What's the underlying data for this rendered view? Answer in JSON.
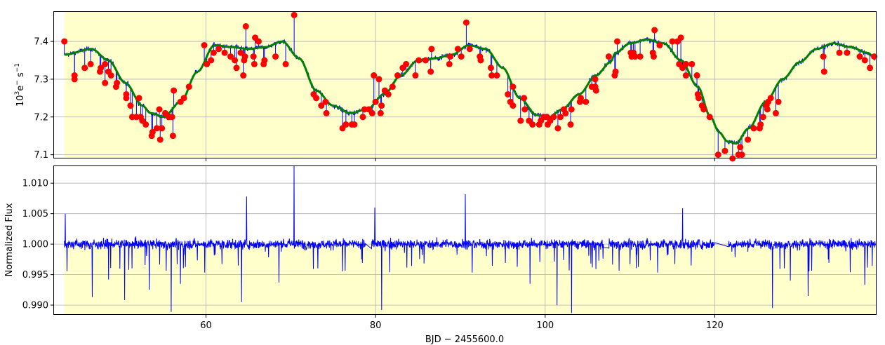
{
  "chart_data": [
    {
      "type": "line",
      "panel": "top",
      "ylabel_base": "10",
      "ylabel_exp": "3",
      "ylabel_mid": "e",
      "ylabel_minus": "−",
      "ylabel_s": " s",
      "ylabel_exp2": "−1",
      "xlim": [
        42,
        139
      ],
      "ylim": [
        7.09,
        7.48
      ],
      "grid": true,
      "x_ticks": [
        60,
        80,
        100,
        120
      ],
      "y_ticks": [
        {
          "value": 7.1,
          "label": "7.1"
        },
        {
          "value": 7.2,
          "label": "7.2"
        },
        {
          "value": 7.3,
          "label": "7.3"
        },
        {
          "value": 7.4,
          "label": "7.4"
        }
      ],
      "fill_color": "#ffffcc",
      "series": [
        {
          "role": "raw",
          "color": "#0000ff",
          "model_knots": {
            "x": [
              43.3,
              46.5,
              48.5,
              50.5,
              52.5,
              53.5,
              55.0,
              57.0,
              59.0,
              61.0,
              63.0,
              65.0,
              67.0,
              69.0,
              71.0,
              73.0,
              75.0,
              77.0,
              79.0,
              81.0,
              83.0,
              85.0,
              87.0,
              89.0,
              91.0,
              93.0,
              95.0,
              97.0,
              99.0,
              100.5,
              102.0,
              104.0,
              106.0,
              107.7,
              108.3,
              110.0,
              112.0,
              114.0,
              116.0,
              118.0,
              119.5,
              120.5,
              121.5,
              122.5,
              124.0,
              126.0,
              128.0,
              130.0,
              132.0,
              134.0,
              136.0,
              138.0,
              139.0
            ],
            "y": [
              7.365,
              7.38,
              7.35,
              7.29,
              7.23,
              7.21,
              7.2,
              7.24,
              7.32,
              7.39,
              7.385,
              7.38,
              7.385,
              7.4,
              7.355,
              7.27,
              7.23,
              7.21,
              7.22,
              7.26,
              7.31,
              7.35,
              7.355,
              7.365,
              7.39,
              7.38,
              7.33,
              7.25,
              7.205,
              7.2,
              7.22,
              7.26,
              7.31,
              7.345,
              7.37,
              7.395,
              7.405,
              7.395,
              7.35,
              7.28,
              7.2,
              7.16,
              7.135,
              7.13,
              7.17,
              7.24,
              7.3,
              7.345,
              7.38,
              7.395,
              7.385,
              7.37,
              7.355
            ]
          },
          "gap": [
            120.0,
            121.6
          ]
        },
        {
          "role": "trend",
          "color": "#008000"
        },
        {
          "role": "outliers",
          "color": "#ff0000",
          "points": [
            [
              43.3,
              7.4
            ],
            [
              44.5,
              7.31
            ],
            [
              44.5,
              7.3
            ],
            [
              45.7,
              7.33
            ],
            [
              46.4,
              7.34
            ],
            [
              47.5,
              7.32
            ],
            [
              47.6,
              7.33
            ],
            [
              48.1,
              7.34
            ],
            [
              48.1,
              7.29
            ],
            [
              48.5,
              7.32
            ],
            [
              48.8,
              7.31
            ],
            [
              49.4,
              7.28
            ],
            [
              49.5,
              7.29
            ],
            [
              50.6,
              7.26
            ],
            [
              50.6,
              7.25
            ],
            [
              51.1,
              7.23
            ],
            [
              51.3,
              7.2
            ],
            [
              51.8,
              7.2
            ],
            [
              52.1,
              7.25
            ],
            [
              52.3,
              7.2
            ],
            [
              52.5,
              7.19
            ],
            [
              52.9,
              7.18
            ],
            [
              53.6,
              7.15
            ],
            [
              53.7,
              7.16
            ],
            [
              54.2,
              7.17
            ],
            [
              54.5,
              7.22
            ],
            [
              54.6,
              7.14
            ],
            [
              54.8,
              7.17
            ],
            [
              55.2,
              7.21
            ],
            [
              55.6,
              7.2
            ],
            [
              56.0,
              7.2
            ],
            [
              56.1,
              7.15
            ],
            [
              56.2,
              7.27
            ],
            [
              57.0,
              7.24
            ],
            [
              57.4,
              7.25
            ],
            [
              58.0,
              7.28
            ],
            [
              59.8,
              7.39
            ],
            [
              60.1,
              7.34
            ],
            [
              60.6,
              7.35
            ],
            [
              60.9,
              7.37
            ],
            [
              61.5,
              7.38
            ],
            [
              62.2,
              7.37
            ],
            [
              62.9,
              7.36
            ],
            [
              63.4,
              7.35
            ],
            [
              63.6,
              7.33
            ],
            [
              64.1,
              7.37
            ],
            [
              64.4,
              7.31
            ],
            [
              64.5,
              7.35
            ],
            [
              64.6,
              7.36
            ],
            [
              64.7,
              7.44
            ],
            [
              65.6,
              7.36
            ],
            [
              65.7,
              7.34
            ],
            [
              65.8,
              7.41
            ],
            [
              66.2,
              7.4
            ],
            [
              66.8,
              7.34
            ],
            [
              66.9,
              7.35
            ],
            [
              68.2,
              7.36
            ],
            [
              69.4,
              7.34
            ],
            [
              70.4,
              7.47
            ],
            [
              72.7,
              7.26
            ],
            [
              73.0,
              7.25
            ],
            [
              73.6,
              7.23
            ],
            [
              74.1,
              7.24
            ],
            [
              74.2,
              7.21
            ],
            [
              76.1,
              7.17
            ],
            [
              76.5,
              7.18
            ],
            [
              77.2,
              7.18
            ],
            [
              77.5,
              7.18
            ],
            [
              78.5,
              7.2
            ],
            [
              78.7,
              7.22
            ],
            [
              79.2,
              7.22
            ],
            [
              79.6,
              7.21
            ],
            [
              79.8,
              7.31
            ],
            [
              80.0,
              7.24
            ],
            [
              80.4,
              7.3
            ],
            [
              80.6,
              7.21
            ],
            [
              80.7,
              7.23
            ],
            [
              81.1,
              7.27
            ],
            [
              81.5,
              7.26
            ],
            [
              82.0,
              7.28
            ],
            [
              82.6,
              7.31
            ],
            [
              83.2,
              7.33
            ],
            [
              83.6,
              7.34
            ],
            [
              84.7,
              7.31
            ],
            [
              85.1,
              7.35
            ],
            [
              85.9,
              7.35
            ],
            [
              86.5,
              7.32
            ],
            [
              86.6,
              7.38
            ],
            [
              88.7,
              7.34
            ],
            [
              88.8,
              7.36
            ],
            [
              89.7,
              7.38
            ],
            [
              90.1,
              7.36
            ],
            [
              90.7,
              7.45
            ],
            [
              91.1,
              7.38
            ],
            [
              92.3,
              7.36
            ],
            [
              92.4,
              7.35
            ],
            [
              93.6,
              7.33
            ],
            [
              93.7,
              7.31
            ],
            [
              94.3,
              7.31
            ],
            [
              95.6,
              7.26
            ],
            [
              95.9,
              7.24
            ],
            [
              96.2,
              7.28
            ],
            [
              96.2,
              7.23
            ],
            [
              97.1,
              7.19
            ],
            [
              97.5,
              7.25
            ],
            [
              97.6,
              7.22
            ],
            [
              98.1,
              7.19
            ],
            [
              98.5,
              7.18
            ],
            [
              99.3,
              7.18
            ],
            [
              99.5,
              7.19
            ],
            [
              99.8,
              7.2
            ],
            [
              100.2,
              7.2
            ],
            [
              100.3,
              7.18
            ],
            [
              100.6,
              7.19
            ],
            [
              101.0,
              7.2
            ],
            [
              101.5,
              7.17
            ],
            [
              101.8,
              7.2
            ],
            [
              102.2,
              7.22
            ],
            [
              102.4,
              7.21
            ],
            [
              103.0,
              7.18
            ],
            [
              103.1,
              7.22
            ],
            [
              104.1,
              7.24
            ],
            [
              104.2,
              7.25
            ],
            [
              104.8,
              7.24
            ],
            [
              105.5,
              7.28
            ],
            [
              105.9,
              7.28
            ],
            [
              106.0,
              7.27
            ],
            [
              105.9,
              7.3
            ],
            [
              107.5,
              7.36
            ],
            [
              108.2,
              7.31
            ],
            [
              108.3,
              7.32
            ],
            [
              108.5,
              7.4
            ],
            [
              110.1,
              7.37
            ],
            [
              110.2,
              7.36
            ],
            [
              110.4,
              7.37
            ],
            [
              110.6,
              7.36
            ],
            [
              111.2,
              7.36
            ],
            [
              112.7,
              7.37
            ],
            [
              112.8,
              7.36
            ],
            [
              112.9,
              7.43
            ],
            [
              113.5,
              7.39
            ],
            [
              115.0,
              7.4
            ],
            [
              115.6,
              7.4
            ],
            [
              115.8,
              7.34
            ],
            [
              116.0,
              7.41
            ],
            [
              116.2,
              7.33
            ],
            [
              116.6,
              7.31
            ],
            [
              116.6,
              7.34
            ],
            [
              117.3,
              7.34
            ],
            [
              117.9,
              7.31
            ],
            [
              118.0,
              7.26
            ],
            [
              118.1,
              7.25
            ],
            [
              118.5,
              7.23
            ],
            [
              118.7,
              7.22
            ],
            [
              119.4,
              7.2
            ],
            [
              120.4,
              7.1
            ],
            [
              121.2,
              7.11
            ],
            [
              122.1,
              7.09
            ],
            [
              122.8,
              7.1
            ],
            [
              123.0,
              7.12
            ],
            [
              123.2,
              7.1
            ],
            [
              123.9,
              7.14
            ],
            [
              124.6,
              7.17
            ],
            [
              125.3,
              7.17
            ],
            [
              125.4,
              7.18
            ],
            [
              125.7,
              7.2
            ],
            [
              126.1,
              7.23
            ],
            [
              126.2,
              7.22
            ],
            [
              126.3,
              7.24
            ],
            [
              126.6,
              7.25
            ],
            [
              127.2,
              7.21
            ],
            [
              127.5,
              7.24
            ],
            [
              132.8,
              7.36
            ],
            [
              132.9,
              7.32
            ],
            [
              134.7,
              7.37
            ],
            [
              135.6,
              7.37
            ],
            [
              137.1,
              7.36
            ],
            [
              137.7,
              7.35
            ],
            [
              138.3,
              7.33
            ],
            [
              138.8,
              7.36
            ],
            [
              139.5,
              7.36
            ],
            [
              139.6,
              7.35
            ],
            [
              140.1,
              7.33
            ],
            [
              140.1,
              7.31
            ]
          ]
        }
      ]
    },
    {
      "type": "line",
      "panel": "bottom",
      "ylabel": "Normalized Flux",
      "xlabel": "BJD − 2455600.0",
      "xlim": [
        42,
        139
      ],
      "ylim": [
        0.9884,
        1.0129
      ],
      "grid": true,
      "x_ticks": [
        {
          "value": 60,
          "label": "60"
        },
        {
          "value": 80,
          "label": "80"
        },
        {
          "value": 100,
          "label": "100"
        },
        {
          "value": 120,
          "label": "120"
        }
      ],
      "y_ticks": [
        {
          "value": 0.99,
          "label": "0.990"
        },
        {
          "value": 0.995,
          "label": "0.995"
        },
        {
          "value": 1.0,
          "label": "1.000"
        },
        {
          "value": 1.005,
          "label": "1.005"
        },
        {
          "value": 1.01,
          "label": "1.010"
        }
      ],
      "fill_color": "#ffffcc",
      "series": [
        {
          "role": "normalized",
          "color": "#0000ff",
          "baseline": 1.0,
          "gaps": [
            [
              78.8,
              79.5
            ],
            [
              106.9,
              107.5
            ],
            [
              120.0,
              121.6
            ]
          ],
          "spikes": [
            [
              43.4,
              1.005
            ],
            [
              46.6,
              0.9913
            ],
            [
              48.5,
              0.9942
            ],
            [
              50.4,
              0.9908
            ],
            [
              53.3,
              0.9925
            ],
            [
              55.9,
              0.9889
            ],
            [
              57.0,
              0.9935
            ],
            [
              64.8,
              1.0078
            ],
            [
              64.2,
              0.9905
            ],
            [
              68.6,
              0.9937
            ],
            [
              70.4,
              1.013
            ],
            [
              79.9,
              1.006
            ],
            [
              80.7,
              0.9892
            ],
            [
              90.6,
              1.0082
            ],
            [
              98.2,
              0.9935
            ],
            [
              101.4,
              0.99
            ],
            [
              103.1,
              0.9887
            ],
            [
              107.0,
              1.0047
            ],
            [
              116.2,
              1.0059
            ],
            [
              120.2,
              0.9945
            ],
            [
              126.8,
              0.9895
            ],
            [
              128.9,
              0.994
            ],
            [
              137.7,
              0.9933
            ],
            [
              131.0,
              0.9915
            ]
          ]
        }
      ]
    }
  ]
}
